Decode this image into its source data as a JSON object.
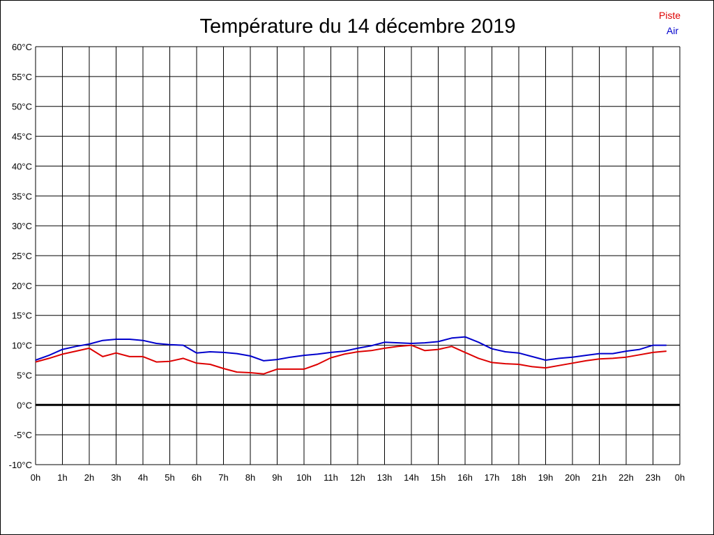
{
  "chart_data": {
    "type": "line",
    "title": "Température du 14 décembre 2019",
    "xlabel": "",
    "ylabel": "",
    "xlim": [
      0,
      24
    ],
    "ylim": [
      -10,
      60
    ],
    "grid": true,
    "legend_position": "top-right",
    "x_tick_labels": [
      "0h",
      "1h",
      "2h",
      "3h",
      "4h",
      "5h",
      "6h",
      "7h",
      "8h",
      "9h",
      "10h",
      "11h",
      "12h",
      "13h",
      "14h",
      "15h",
      "16h",
      "17h",
      "18h",
      "19h",
      "20h",
      "21h",
      "22h",
      "23h",
      "0h"
    ],
    "y_ticks": [
      -10,
      -5,
      0,
      5,
      10,
      15,
      20,
      25,
      30,
      35,
      40,
      45,
      50,
      55,
      60
    ],
    "y_tick_labels": [
      "-10°C",
      "-5°C",
      "0°C",
      "5°C",
      "10°C",
      "15°C",
      "20°C",
      "25°C",
      "30°C",
      "35°C",
      "40°C",
      "45°C",
      "50°C",
      "55°C",
      "60°C"
    ],
    "x": [
      0,
      0.5,
      1,
      1.5,
      2,
      2.5,
      3,
      3.5,
      4,
      4.5,
      5,
      5.5,
      6,
      6.5,
      7,
      7.5,
      8,
      8.5,
      9,
      9.5,
      10,
      10.5,
      11,
      11.5,
      12,
      12.5,
      13,
      13.5,
      14,
      14.5,
      15,
      15.5,
      16,
      16.5,
      17,
      17.5,
      18,
      18.5,
      19,
      19.5,
      20,
      20.5,
      21,
      21.5,
      22,
      22.5,
      23,
      23.5
    ],
    "series": [
      {
        "name": "Piste",
        "color": "#dd0000",
        "values": [
          7.2,
          7.8,
          8.5,
          9.0,
          9.5,
          8.1,
          8.7,
          8.1,
          8.1,
          7.2,
          7.3,
          7.8,
          7.0,
          6.8,
          6.1,
          5.5,
          5.4,
          5.2,
          6.0,
          6.0,
          6.0,
          6.8,
          7.9,
          8.5,
          8.9,
          9.1,
          9.5,
          9.8,
          10.0,
          9.1,
          9.3,
          9.8,
          8.8,
          7.8,
          7.1,
          6.9,
          6.8,
          6.4,
          6.2,
          6.6,
          7.0,
          7.4,
          7.7,
          7.8,
          8.0,
          8.4,
          8.8,
          9.0
        ]
      },
      {
        "name": "Air",
        "color": "#0000cc",
        "values": [
          7.5,
          8.3,
          9.3,
          9.8,
          10.2,
          10.8,
          11.0,
          11.0,
          10.8,
          10.3,
          10.1,
          10.0,
          8.7,
          8.9,
          8.8,
          8.6,
          8.2,
          7.4,
          7.6,
          8.0,
          8.3,
          8.5,
          8.8,
          9.0,
          9.5,
          9.9,
          10.5,
          10.4,
          10.3,
          10.4,
          10.6,
          11.2,
          11.4,
          10.5,
          9.4,
          8.9,
          8.7,
          8.1,
          7.5,
          7.8,
          8.0,
          8.3,
          8.6,
          8.6,
          9.0,
          9.3,
          10.0,
          10.0
        ]
      }
    ]
  }
}
